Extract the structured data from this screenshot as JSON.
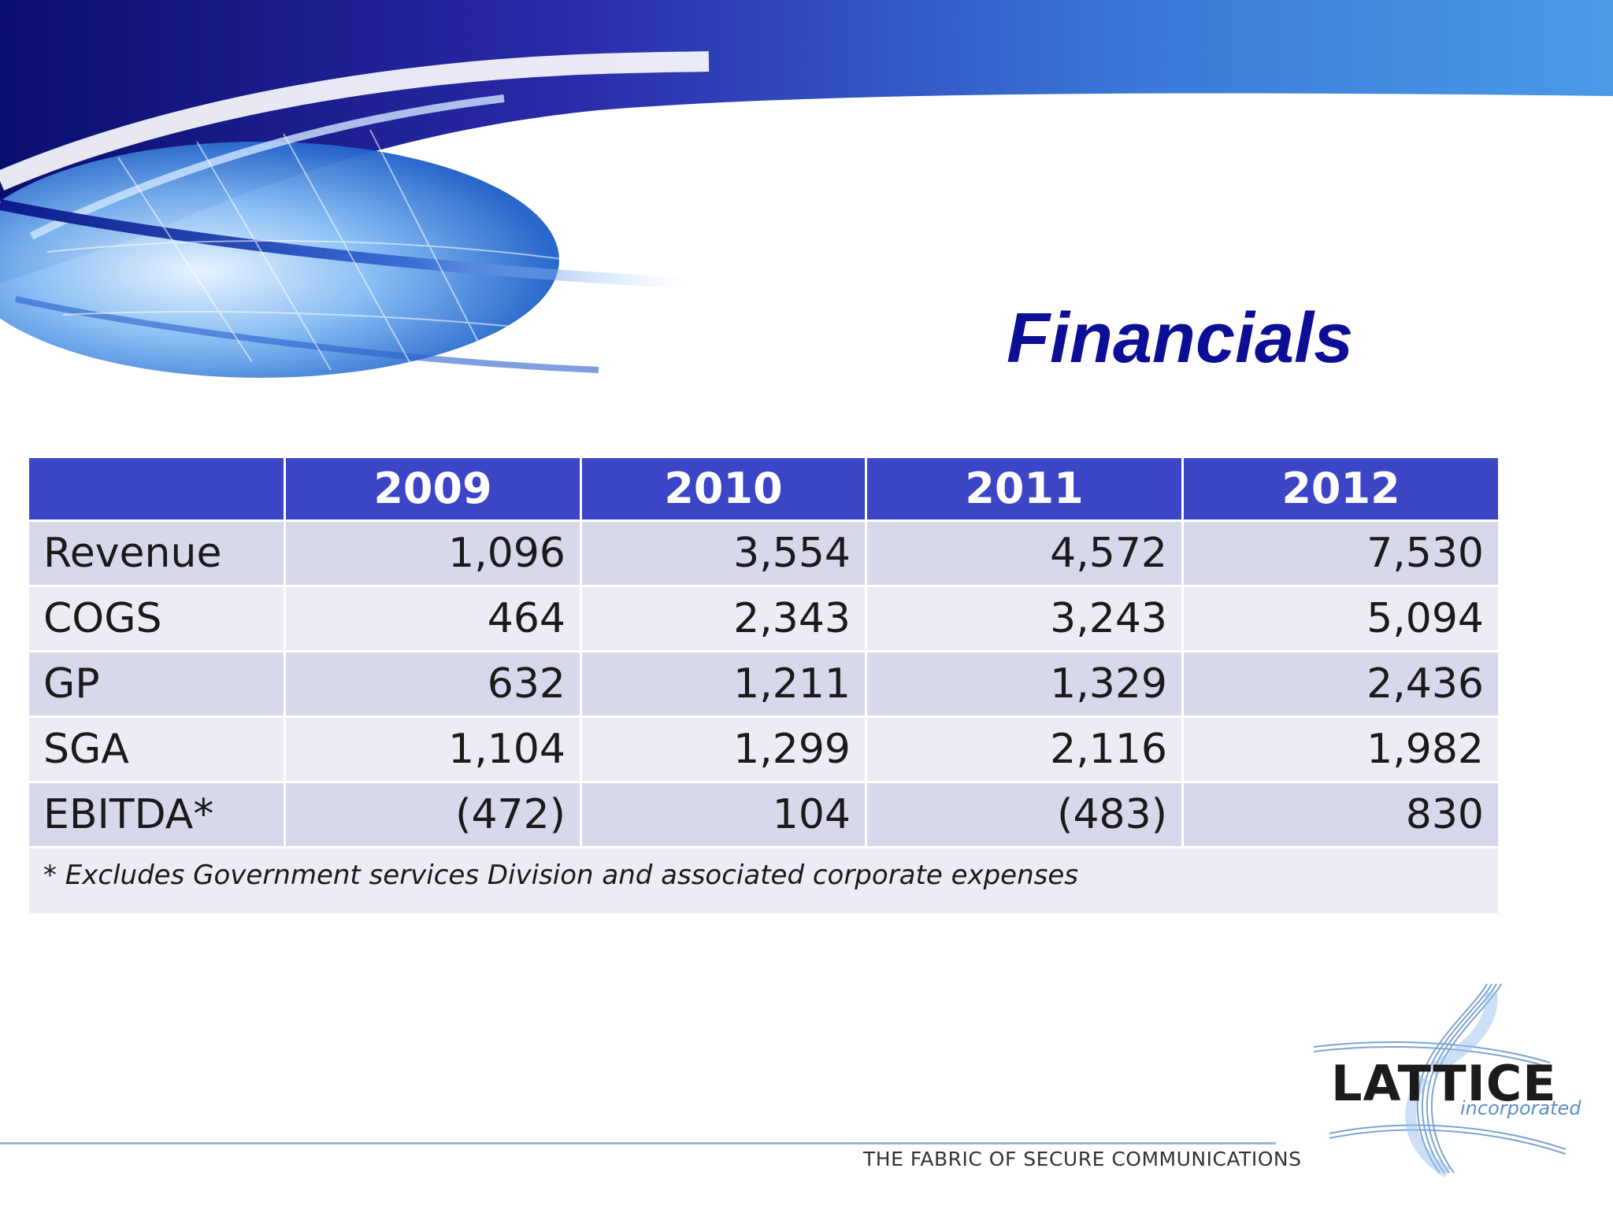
{
  "slide": {
    "title": "Financials"
  },
  "table": {
    "headers": [
      "",
      "2009",
      "2010",
      "2011",
      "2012"
    ],
    "rows": [
      {
        "label": "Revenue",
        "values": [
          "1,096",
          "3,554",
          "4,572",
          "7,530"
        ]
      },
      {
        "label": "COGS",
        "values": [
          "464",
          "2,343",
          "3,243",
          "5,094"
        ]
      },
      {
        "label": "GP",
        "values": [
          "632",
          "1,211",
          "1,329",
          "2,436"
        ]
      },
      {
        "label": "SGA",
        "values": [
          "1,104",
          "1,299",
          "2,116",
          "1,982"
        ]
      },
      {
        "label": "EBITDA*",
        "values": [
          "(472)",
          "104",
          "(483)",
          "830"
        ]
      }
    ],
    "footnote": "* Excludes Government services Division and associated corporate expenses"
  },
  "footer": {
    "tagline": "THE FABRIC OF SECURE COMMUNICATIONS",
    "logo_name": "LATTICE",
    "logo_sub": "incorporated"
  },
  "colors": {
    "title": "#0c0e96",
    "header_bg": "#3b45c6",
    "row_dark": "#d8d8ec",
    "row_light": "#ececf5",
    "logo_accent": "#5d8ec8"
  }
}
